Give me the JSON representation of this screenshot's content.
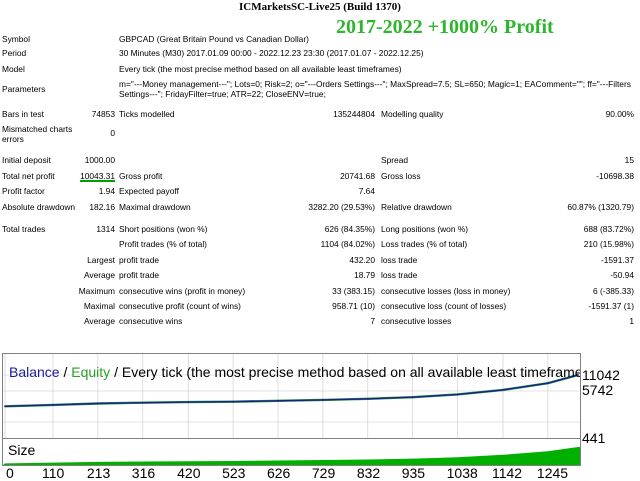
{
  "window": {
    "title": "ICMarketsSC-Live25 (Build 1370)"
  },
  "banner": "2017-2022 +1000% Profit",
  "report": {
    "symbol_label": "Symbol",
    "symbol_value": "GBPCAD (Great Britain Pound vs Canadian Dollar)",
    "period_label": "Period",
    "period_value": "30 Minutes (M30) 2017.01.09 00:00 - 2022.12.23 23:30 (2017.01.07 - 2022.12.25)",
    "model_label": "Model",
    "model_value": "Every tick (the most precise method based on all available least timeframes)",
    "parameters_label": "Parameters",
    "parameters_value": "m=\"---Money management---\"; Lots=0; Risk=2; o=\"---Orders Settings---\"; MaxSpread=7.5; SL=650; Magic=1; EAComment=\"\"; ff=\"---Filters Settings---\"; FridayFilter=true; ATR=22; CloseENV=true;",
    "bars_label": "Bars in test",
    "bars_value": "74853",
    "ticks_label": "Ticks modelled",
    "ticks_value": "135244804",
    "quality_label": "Modelling quality",
    "quality_value": "90.00%",
    "mismatched_label": "Mismatched charts errors",
    "mismatched_value": "0",
    "deposit_label": "Initial deposit",
    "deposit_value": "1000.00",
    "spread_label": "Spread",
    "spread_value": "15",
    "net_label": "Total net profit",
    "net_value": "10043.31",
    "gross_profit_label": "Gross profit",
    "gross_profit_value": "20741.68",
    "gross_loss_label": "Gross loss",
    "gross_loss_value": "-10698.38",
    "pf_label": "Profit factor",
    "pf_value": "1.94",
    "payoff_label": "Expected payoff",
    "payoff_value": "7.64",
    "abs_dd_label": "Absolute drawdown",
    "abs_dd_value": "182.16",
    "max_dd_label": "Maximal drawdown",
    "max_dd_value": "3282.20 (29.53%)",
    "rel_dd_label": "Relative drawdown",
    "rel_dd_value": "60.87% (1320.79)",
    "trades_label": "Total trades",
    "trades_value": "1314",
    "short_label": "Short positions (won %)",
    "short_value": "626 (84.35%)",
    "long_label": "Long positions (won %)",
    "long_value": "688 (83.72%)",
    "profit_trades_label": "Profit trades (% of total)",
    "profit_trades_value": "1104 (84.02%)",
    "loss_trades_label": "Loss trades (% of total)",
    "loss_trades_value": "210 (15.98%)",
    "largest_label": "Largest",
    "largest_profit_label": "profit trade",
    "largest_profit_value": "432.20",
    "largest_loss_label": "loss trade",
    "largest_loss_value": "-1591.37",
    "average_label": "Average",
    "avg_profit_label": "profit trade",
    "avg_profit_value": "18.79",
    "avg_loss_label": "loss trade",
    "avg_loss_value": "-50.94",
    "maximum_label": "Maximum",
    "max_cons_wins_label": "consecutive wins (profit in money)",
    "max_cons_wins_value": "33 (383.15)",
    "max_cons_losses_label": "consecutive losses (loss in money)",
    "max_cons_losses_value": "6 (-385.33)",
    "maximal_label": "Maximal",
    "maximal_profit_label": "consecutive profit (count of wins)",
    "maximal_profit_value": "958.71 (10)",
    "maximal_loss_label": "consecutive loss (count of losses)",
    "maximal_loss_value": "-1591.37 (1)",
    "average2_label": "Average",
    "avg_cons_wins_label": "consecutive wins",
    "avg_cons_wins_value": "7",
    "avg_cons_losses_label": "consecutive losses",
    "avg_cons_losses_value": "1"
  },
  "chart": {
    "legend_balance": "Balance",
    "legend_sep1": " / ",
    "legend_equity": "Equity",
    "legend_sep2": " / ",
    "legend_rest": "Every tick (the most precise method based on all available least timeframes to c",
    "size_label": "Size",
    "colors": {
      "balance": "#1a1a9a",
      "equity": "#2ca02c",
      "size": "#00b000",
      "grid": "#c8c8c8"
    }
  },
  "chart_data": {
    "type": "line",
    "title": "",
    "series": [
      {
        "name": "Balance",
        "x": [
          0,
          110,
          213,
          316,
          420,
          523,
          626,
          729,
          832,
          935,
          1038,
          1142,
          1245,
          1314
        ],
        "values": [
          1000,
          1450,
          1900,
          2150,
          2350,
          2450,
          2750,
          3050,
          3400,
          3900,
          4800,
          6250,
          8400,
          11042
        ]
      },
      {
        "name": "Equity",
        "x": [
          0,
          110,
          213,
          316,
          420,
          523,
          626,
          729,
          832,
          935,
          1038,
          1142,
          1245,
          1314
        ],
        "values": [
          1000,
          1450,
          1900,
          2150,
          2350,
          2450,
          2750,
          3050,
          3400,
          3900,
          4800,
          6250,
          8400,
          11042
        ]
      }
    ],
    "ytick_labels": [
      "11042",
      "5742",
      "441"
    ],
    "xtick_labels": [
      "0",
      "110",
      "213",
      "316",
      "420",
      "523",
      "626",
      "729",
      "832",
      "935",
      "1038",
      "1142",
      "1245"
    ],
    "xlim": [
      0,
      1314
    ],
    "ylim": [
      441,
      11042
    ],
    "grid": true
  }
}
